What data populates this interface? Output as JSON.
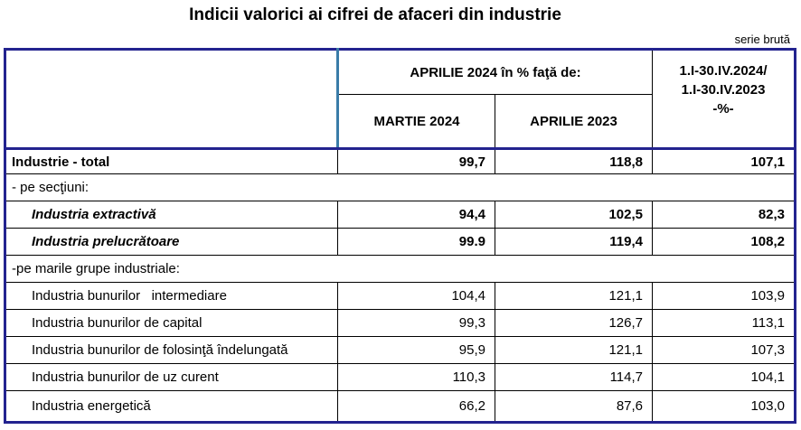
{
  "title": "Indicii valorici ai cifrei de afaceri din industrie",
  "series_note": "serie brută",
  "header": {
    "group_label": "APRILIE 2024  în % faţă de:",
    "col1": "MARTIE 2024",
    "col2": "APRILIE 2023",
    "col3_line1": "1.I-30.IV.2024/",
    "col3_line2": "1.I-30.IV.2023",
    "col3_line3": "-%-"
  },
  "rows": [
    {
      "label": "Industrie - total",
      "v1": "99,7",
      "v2": "118,8",
      "v3": "107,1"
    },
    {
      "label": "- pe secţiuni:"
    },
    {
      "label": "Industria extractivă",
      "v1": "94,4",
      "v2": "102,5",
      "v3": "82,3"
    },
    {
      "label": "Industria prelucrătoare",
      "v1": "99.9",
      "v2": "119,4",
      "v3": "108,2"
    },
    {
      "label": "-pe marile grupe industriale:"
    },
    {
      "label": "Industria bunurilor   intermediare",
      "v1": "104,4",
      "v2": "121,1",
      "v3": "103,9"
    },
    {
      "label": "Industria bunurilor de capital",
      "v1": "99,3",
      "v2": "126,7",
      "v3": "113,1"
    },
    {
      "label": "Industria bunurilor de folosinţă îndelungată",
      "v1": "95,9",
      "v2": "121,1",
      "v3": "107,3"
    },
    {
      "label": "Industria bunurilor de uz curent",
      "v1": "110,3",
      "v2": "114,7",
      "v3": "104,1"
    },
    {
      "label": "Industria energetică",
      "v1": "66,2",
      "v2": "87,6",
      "v3": "103,0"
    }
  ]
}
